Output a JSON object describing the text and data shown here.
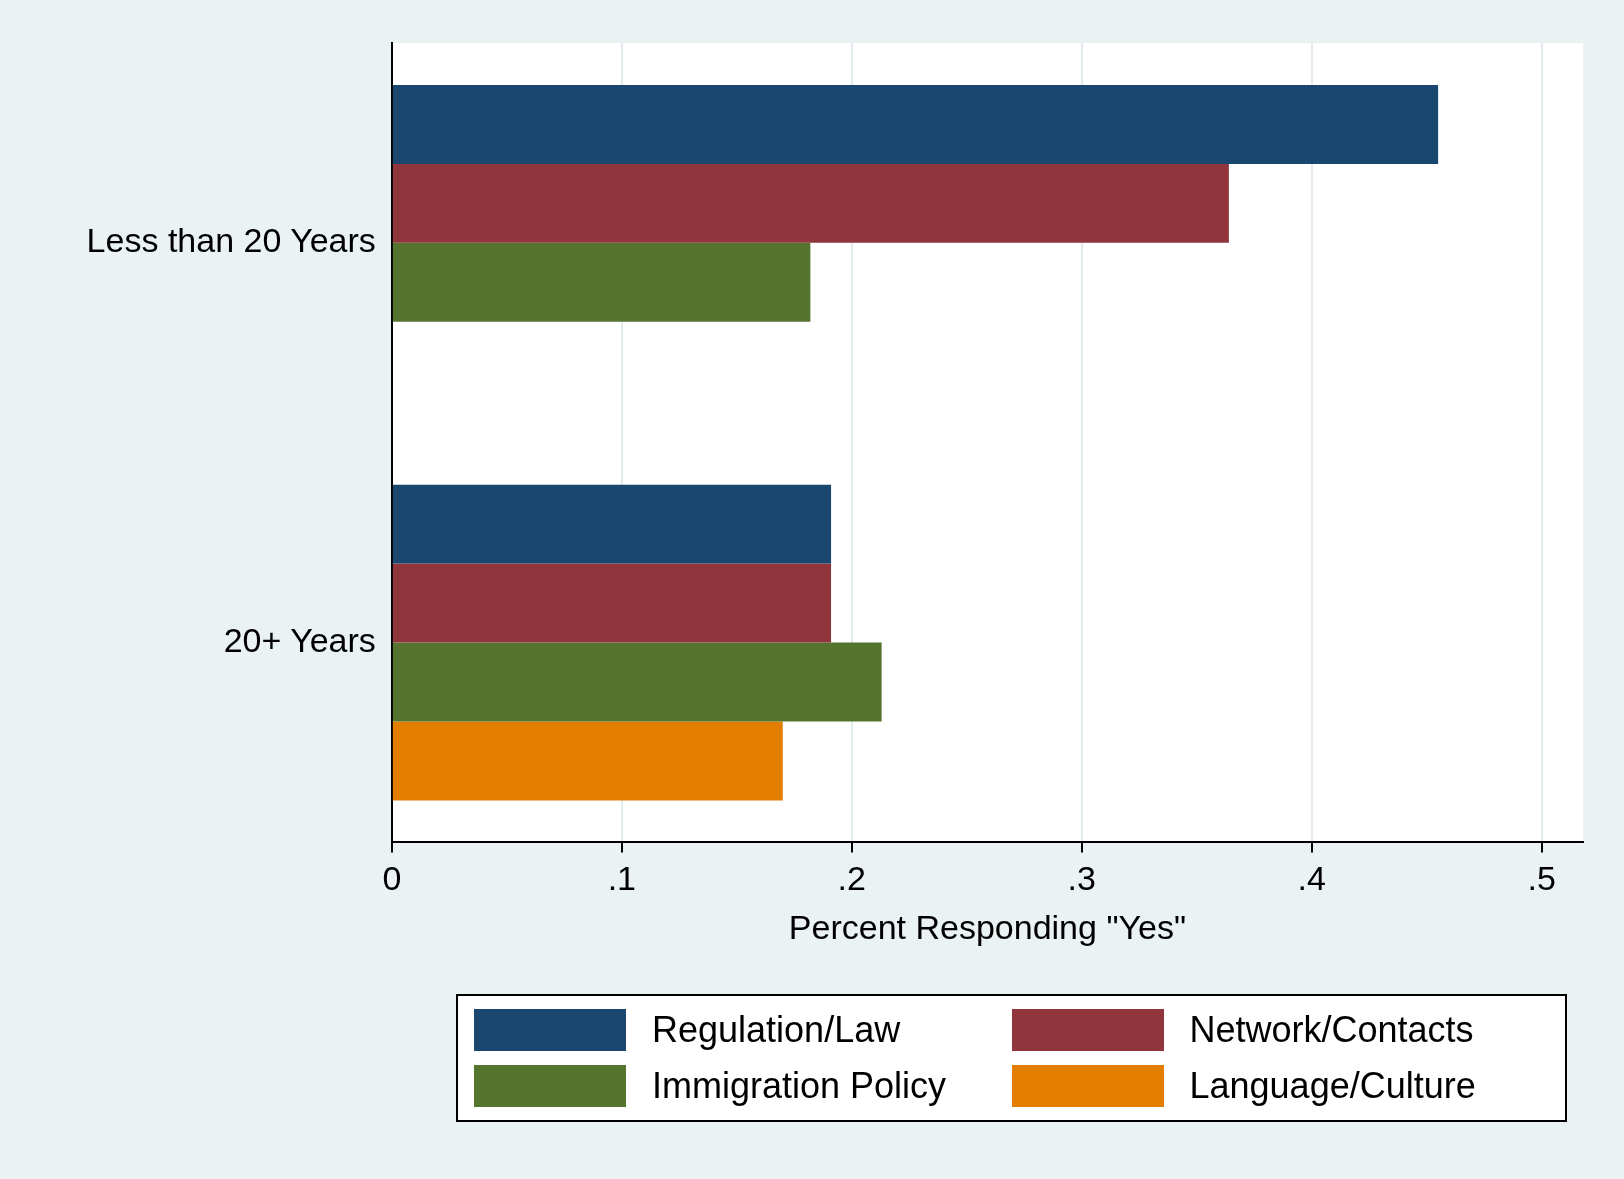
{
  "chart_data": {
    "type": "bar",
    "orientation": "horizontal",
    "xlabel": "Percent Responding \"Yes\"",
    "categories": [
      "Less than 20 Years",
      "20+ Years"
    ],
    "series": [
      {
        "name": "Regulation/Law",
        "color": "#1a476f",
        "values": [
          0.455,
          0.191
        ]
      },
      {
        "name": "Network/Contacts",
        "color": "#90353b",
        "values": [
          0.364,
          0.191
        ]
      },
      {
        "name": "Immigration Policy",
        "color": "#55752f",
        "values": [
          0.182,
          0.213
        ]
      },
      {
        "name": "Language/Culture",
        "color": "#e37e00",
        "values": [
          null,
          0.17
        ]
      }
    ],
    "xlim": [
      0,
      0.518
    ],
    "xticks": [
      0,
      {
        "value": 0.1,
        "label": ".1"
      },
      {
        "value": 0.2,
        "label": ".2"
      },
      {
        "value": 0.3,
        "label": ".3"
      },
      {
        "value": 0.4,
        "label": ".4"
      },
      {
        "value": 0.5,
        "label": ".5"
      }
    ],
    "grid": "x",
    "legend": "bottom"
  }
}
